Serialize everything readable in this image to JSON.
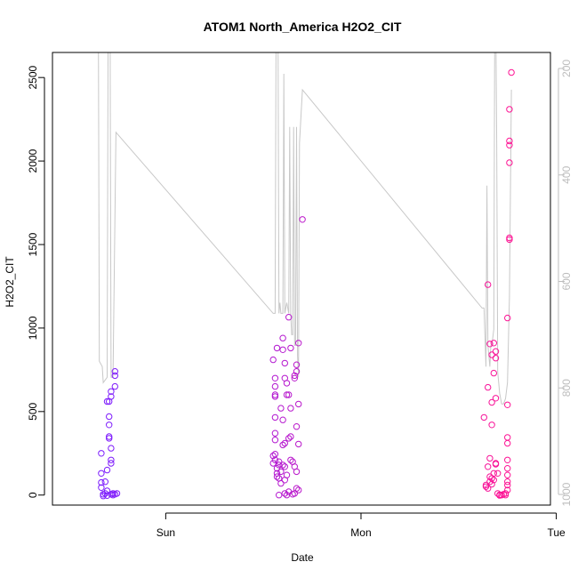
{
  "chart_data": {
    "type": "scatter",
    "title": "ATOM1 North_America H2O2_CIT",
    "xlabel": "Date",
    "ylabel": "H2O2_CIT",
    "xlim": [
      -0.58,
      1.97
    ],
    "ylim": [
      -60,
      2650
    ],
    "x_ticks": [
      {
        "label": "Sun",
        "value": 0
      },
      {
        "label": "Mon",
        "value": 1
      },
      {
        "label": "Tue",
        "value": 2
      }
    ],
    "y_ticks": [
      0,
      500,
      1000,
      1500,
      2000,
      2500
    ],
    "secondary_axis": {
      "label": "",
      "reversed": true,
      "ylim": [
        1020,
        170
      ],
      "ticks": [
        200,
        400,
        600,
        800,
        1000
      ],
      "color": "#bdbdbd"
    },
    "grid": false,
    "legend": "none",
    "marker": "open-circle",
    "color_start": "#7a1cff",
    "color_end": "#ff1493",
    "line_color": "#c8c8c8",
    "series": [
      {
        "points": [
          [
            -0.33,
            130
          ],
          [
            -0.33,
            250
          ],
          [
            -0.33,
            75
          ],
          [
            -0.33,
            45
          ],
          [
            -0.32,
            5
          ],
          [
            -0.32,
            -5
          ],
          [
            -0.31,
            80
          ],
          [
            -0.31,
            10
          ],
          [
            -0.3,
            150
          ],
          [
            -0.3,
            560
          ],
          [
            -0.3,
            25
          ],
          [
            -0.3,
            -3
          ],
          [
            -0.29,
            470
          ],
          [
            -0.29,
            350
          ],
          [
            -0.29,
            340
          ],
          [
            -0.29,
            420
          ],
          [
            -0.29,
            560
          ],
          [
            -0.28,
            620
          ],
          [
            -0.28,
            590
          ],
          [
            -0.28,
            280
          ],
          [
            -0.28,
            210
          ],
          [
            -0.28,
            190
          ],
          [
            -0.28,
            5
          ],
          [
            -0.27,
            10
          ],
          [
            -0.27,
            0
          ],
          [
            -0.26,
            650
          ],
          [
            -0.26,
            715
          ],
          [
            -0.26,
            740
          ],
          [
            -0.26,
            5
          ],
          [
            -0.25,
            10
          ],
          [
            0.55,
            810
          ],
          [
            0.55,
            235
          ],
          [
            0.55,
            190
          ],
          [
            0.56,
            650
          ],
          [
            0.56,
            700
          ],
          [
            0.56,
            600
          ],
          [
            0.56,
            590
          ],
          [
            0.56,
            465
          ],
          [
            0.56,
            370
          ],
          [
            0.56,
            330
          ],
          [
            0.56,
            245
          ],
          [
            0.56,
            210
          ],
          [
            0.57,
            880
          ],
          [
            0.57,
            160
          ],
          [
            0.57,
            130
          ],
          [
            0.57,
            110
          ],
          [
            0.58,
            200
          ],
          [
            0.58,
            180
          ],
          [
            0.58,
            100
          ],
          [
            0.58,
            0
          ],
          [
            0.59,
            520
          ],
          [
            0.59,
            70
          ],
          [
            0.59,
            140
          ],
          [
            0.6,
            940
          ],
          [
            0.6,
            870
          ],
          [
            0.6,
            300
          ],
          [
            0.6,
            180
          ],
          [
            0.6,
            450
          ],
          [
            0.61,
            790
          ],
          [
            0.61,
            700
          ],
          [
            0.61,
            310
          ],
          [
            0.61,
            170
          ],
          [
            0.61,
            90
          ],
          [
            0.61,
            10
          ],
          [
            0.62,
            670
          ],
          [
            0.62,
            600
          ],
          [
            0.62,
            120
          ],
          [
            0.62,
            0
          ],
          [
            0.63,
            1065
          ],
          [
            0.63,
            600
          ],
          [
            0.63,
            340
          ],
          [
            0.63,
            20
          ],
          [
            0.64,
            880
          ],
          [
            0.64,
            520
          ],
          [
            0.64,
            350
          ],
          [
            0.64,
            210
          ],
          [
            0.65,
            200
          ],
          [
            0.65,
            5
          ],
          [
            0.66,
            715
          ],
          [
            0.66,
            700
          ],
          [
            0.66,
            170
          ],
          [
            0.66,
            10
          ],
          [
            0.67,
            780
          ],
          [
            0.67,
            740
          ],
          [
            0.67,
            410
          ],
          [
            0.67,
            140
          ],
          [
            0.67,
            40
          ],
          [
            0.68,
            910
          ],
          [
            0.68,
            545
          ],
          [
            0.68,
            305
          ],
          [
            0.68,
            30
          ],
          [
            0.7,
            1650
          ],
          [
            1.63,
            465
          ],
          [
            1.64,
            60
          ],
          [
            1.64,
            50
          ],
          [
            1.65,
            1260
          ],
          [
            1.65,
            645
          ],
          [
            1.65,
            170
          ],
          [
            1.65,
            40
          ],
          [
            1.66,
            905
          ],
          [
            1.66,
            220
          ],
          [
            1.66,
            110
          ],
          [
            1.66,
            80
          ],
          [
            1.67,
            840
          ],
          [
            1.67,
            555
          ],
          [
            1.67,
            420
          ],
          [
            1.67,
            100
          ],
          [
            1.67,
            65
          ],
          [
            1.68,
            910
          ],
          [
            1.68,
            730
          ],
          [
            1.68,
            130
          ],
          [
            1.68,
            90
          ],
          [
            1.69,
            860
          ],
          [
            1.69,
            820
          ],
          [
            1.69,
            580
          ],
          [
            1.69,
            190
          ],
          [
            1.69,
            185
          ],
          [
            1.7,
            130
          ],
          [
            1.7,
            10
          ],
          [
            1.71,
            2
          ],
          [
            1.71,
            -2
          ],
          [
            1.72,
            0
          ],
          [
            1.73,
            5
          ],
          [
            1.74,
            0
          ],
          [
            1.74,
            10
          ],
          [
            1.75,
            30
          ],
          [
            1.75,
            60
          ],
          [
            1.75,
            80
          ],
          [
            1.75,
            120
          ],
          [
            1.75,
            160
          ],
          [
            1.75,
            210
          ],
          [
            1.75,
            310
          ],
          [
            1.75,
            345
          ],
          [
            1.75,
            540
          ],
          [
            1.75,
            1060
          ],
          [
            1.76,
            1530
          ],
          [
            1.76,
            1540
          ],
          [
            1.76,
            1990
          ],
          [
            1.76,
            2095
          ],
          [
            1.76,
            2120
          ],
          [
            1.76,
            2310
          ],
          [
            1.77,
            2530
          ]
        ]
      }
    ],
    "secondary_line": [
      [
        -0.36,
        100
      ],
      [
        -0.345,
        100
      ],
      [
        -0.34,
        750
      ],
      [
        -0.325,
        760
      ],
      [
        -0.32,
        790
      ],
      [
        -0.3,
        780
      ],
      [
        -0.295,
        100
      ],
      [
        -0.285,
        100
      ],
      [
        -0.28,
        780
      ],
      [
        -0.27,
        780
      ],
      [
        -0.255,
        320
      ],
      [
        0.55,
        660
      ],
      [
        0.56,
        660
      ],
      [
        0.565,
        100
      ],
      [
        0.575,
        100
      ],
      [
        0.58,
        660
      ],
      [
        0.585,
        640
      ],
      [
        0.59,
        660
      ],
      [
        0.6,
        660
      ],
      [
        0.605,
        210
      ],
      [
        0.61,
        660
      ],
      [
        0.62,
        640
      ],
      [
        0.63,
        660
      ],
      [
        0.635,
        310
      ],
      [
        0.64,
        660
      ],
      [
        0.645,
        700
      ],
      [
        0.65,
        700
      ],
      [
        0.655,
        310
      ],
      [
        0.66,
        720
      ],
      [
        0.665,
        720
      ],
      [
        0.67,
        310
      ],
      [
        0.675,
        740
      ],
      [
        0.68,
        780
      ],
      [
        0.685,
        340
      ],
      [
        0.7,
        240
      ],
      [
        1.62,
        650
      ],
      [
        1.63,
        650
      ],
      [
        1.64,
        760
      ],
      [
        1.645,
        420
      ],
      [
        1.65,
        720
      ],
      [
        1.66,
        760
      ],
      [
        1.665,
        720
      ],
      [
        1.67,
        720
      ],
      [
        1.68,
        690
      ],
      [
        1.685,
        100
      ],
      [
        1.69,
        100
      ],
      [
        1.695,
        340
      ],
      [
        1.7,
        770
      ],
      [
        1.71,
        810
      ],
      [
        1.72,
        830
      ],
      [
        1.73,
        830
      ],
      [
        1.74,
        820
      ],
      [
        1.75,
        790
      ],
      [
        1.76,
        630
      ],
      [
        1.77,
        240
      ]
    ]
  }
}
